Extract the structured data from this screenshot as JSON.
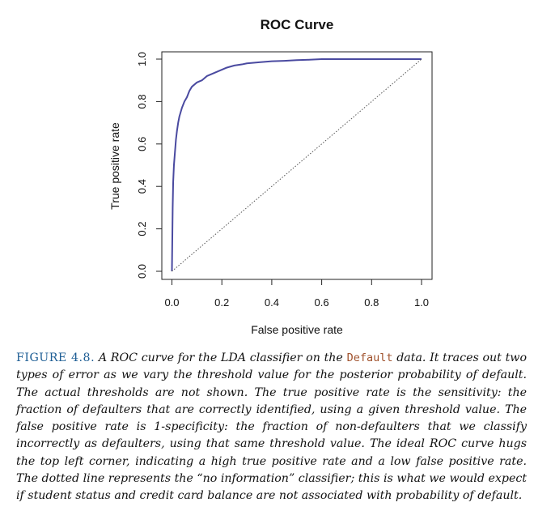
{
  "chart_data": {
    "type": "line",
    "title": "ROC Curve",
    "xlabel": "False positive rate",
    "ylabel": "True positive rate",
    "xlim": [
      0,
      1
    ],
    "ylim": [
      0,
      1
    ],
    "xticks": [
      "0.0",
      "0.2",
      "0.4",
      "0.6",
      "0.8",
      "1.0"
    ],
    "yticks": [
      "0.0",
      "0.2",
      "0.4",
      "0.6",
      "0.8",
      "1.0"
    ],
    "grid": false,
    "series": [
      {
        "style": "solid",
        "color": "#4a4aa0",
        "x": [
          0,
          0.003,
          0.005,
          0.008,
          0.012,
          0.016,
          0.02,
          0.025,
          0.03,
          0.04,
          0.05,
          0.06,
          0.07,
          0.08,
          0.09,
          0.1,
          0.12,
          0.14,
          0.16,
          0.18,
          0.2,
          0.22,
          0.25,
          0.28,
          0.3,
          0.35,
          0.4,
          0.45,
          0.5,
          0.55,
          0.6,
          0.7,
          0.8,
          0.9,
          1.0
        ],
        "y": [
          0,
          0.3,
          0.42,
          0.5,
          0.56,
          0.62,
          0.66,
          0.7,
          0.73,
          0.77,
          0.8,
          0.82,
          0.85,
          0.87,
          0.88,
          0.89,
          0.9,
          0.92,
          0.93,
          0.94,
          0.95,
          0.96,
          0.97,
          0.975,
          0.98,
          0.985,
          0.99,
          0.992,
          0.995,
          0.997,
          1.0,
          1.0,
          1.0,
          1.0,
          1.0
        ]
      },
      {
        "style": "dotted",
        "color": "#555555",
        "x": [
          0,
          1
        ],
        "y": [
          0,
          1
        ]
      }
    ]
  },
  "caption": {
    "figure_label": "FIGURE 4.8.",
    "text_before_code": "A ROC curve for the LDA classifier on the",
    "code": "Default",
    "text_after_code": "data. It traces out two types of error as we vary the threshold value for the posterior probability of default. The actual thresholds are not shown. The true positive rate is the sensitivity: the fraction of defaulters that are correctly identified, using a given threshold value. The false positive rate is 1-specificity: the fraction of non-defaulters that we classify incorrectly as defaulters, using that same threshold value. The ideal ROC curve hugs the top left corner, indicating a high true positive rate and a low false positive rate. The dotted line represents the “no information” classifier; this is what we would expect if student status and credit card balance are not associated with probability of default."
  }
}
